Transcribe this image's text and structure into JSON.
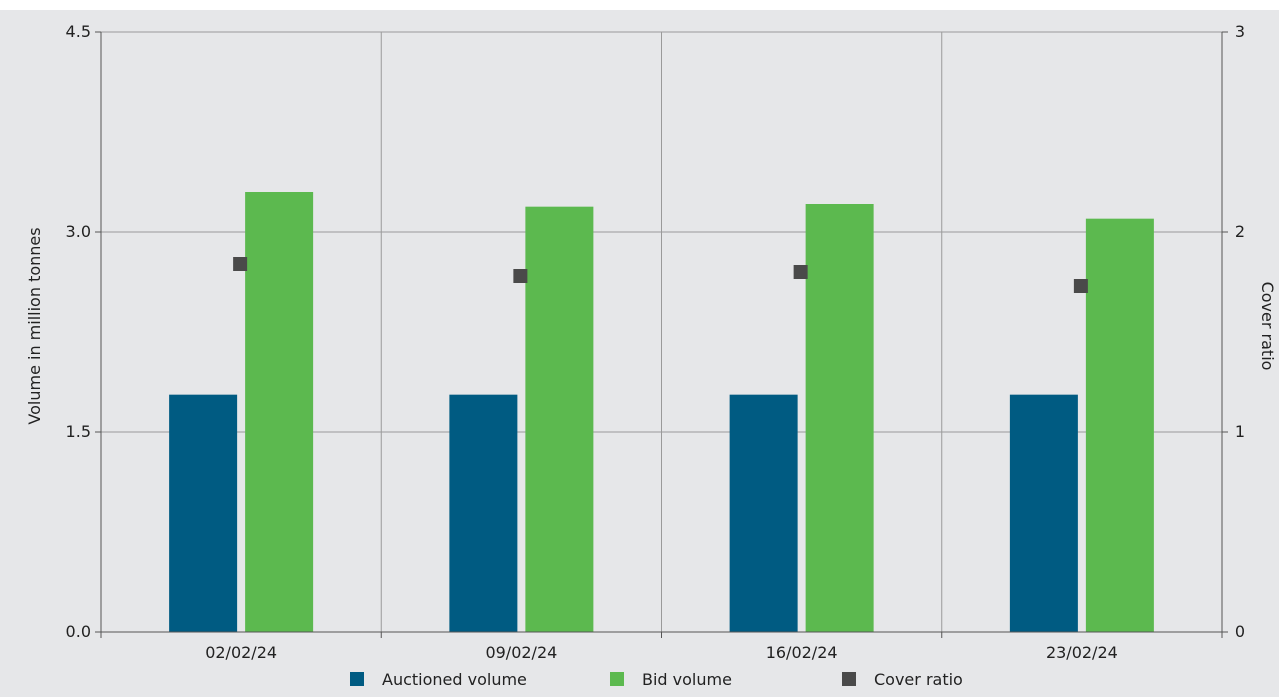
{
  "chart_data": {
    "type": "bar",
    "categories": [
      "02/02/24",
      "09/02/24",
      "16/02/24",
      "23/02/24"
    ],
    "series": [
      {
        "name": "Auctioned volume",
        "axis": "left",
        "kind": "bar",
        "color": "#005b82",
        "values": [
          1.78,
          1.78,
          1.78,
          1.78
        ]
      },
      {
        "name": "Bid volume",
        "axis": "left",
        "kind": "bar",
        "color": "#5cb94f",
        "values": [
          3.3,
          3.19,
          3.21,
          3.1
        ]
      },
      {
        "name": "Cover ratio",
        "axis": "right",
        "kind": "scatter",
        "marker": "square",
        "color": "#4a4a4a",
        "values": [
          1.84,
          1.78,
          1.8,
          1.73
        ]
      }
    ],
    "ylabel": "Volume in million tonnes",
    "y2label": "Cover ratio",
    "ylim": [
      0,
      4.5
    ],
    "y2lim": [
      0,
      3
    ],
    "yticks": [
      "0.0",
      "1.5",
      "3.0",
      "4.5"
    ],
    "y2ticks": [
      "0",
      "1",
      "2",
      "3"
    ],
    "grid": true,
    "legend": "bottom"
  }
}
